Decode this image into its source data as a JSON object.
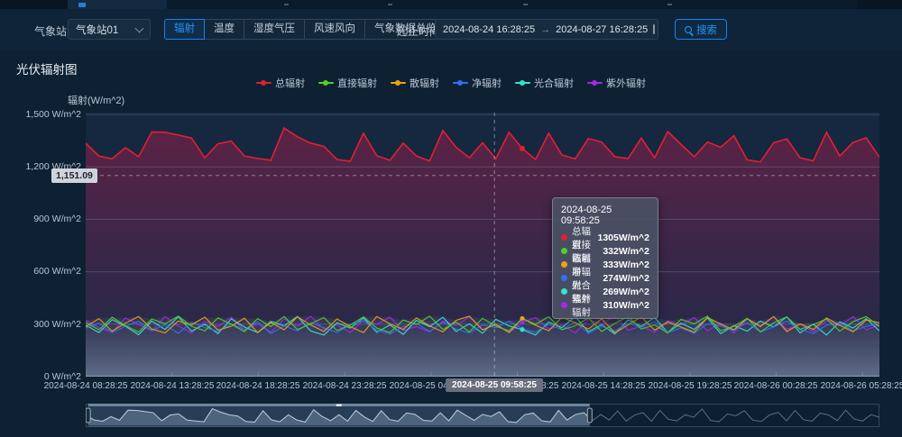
{
  "toolbar": {
    "station_label": "气象站",
    "station_value": "气象站01",
    "tabs": [
      {
        "label": "辐射"
      },
      {
        "label": "温度"
      },
      {
        "label": "湿度气压"
      },
      {
        "label": "风速风向"
      },
      {
        "label": "气象数据总览"
      }
    ],
    "time_label": "起止时间",
    "time_start": "2024-08-24 16:28:25",
    "time_end": "2024-08-27 16:28:25",
    "arrow": "→",
    "search_label": "搜索"
  },
  "page": {
    "title": "光伏辐射图"
  },
  "chart_data": {
    "type": "line",
    "title": "光伏辐射图",
    "ylabel": "辐射(W/m^2)",
    "ylim": [
      0,
      1500
    ],
    "grid": true,
    "legend_position": "top",
    "y_ticks": [
      "1,500 W/m^2",
      "1,200 W/m^2",
      "900 W/m^2",
      "600 W/m^2",
      "300 W/m^2",
      "0 W/m^2"
    ],
    "x_ticks": [
      "2024-08-24 08:28:25",
      "2024-08-24 13:28:25",
      "2024-08-24 18:28:25",
      "2024-08-24 23:28:25",
      "2024-08-25 04:28:25",
      "2024-08-25 09:28:25",
      "2024-08-25 14:28:25",
      "2024-08-25 19:28:25",
      "2024-08-26 00:28:25",
      "2024-08-26 05:28:25"
    ],
    "legend": [
      {
        "name": "总辐射",
        "color": "#e21f33"
      },
      {
        "name": "直接辐射",
        "color": "#4fd228"
      },
      {
        "name": "散辐射",
        "color": "#eaa410"
      },
      {
        "name": "净辐射",
        "color": "#2f72f5"
      },
      {
        "name": "光合辐射",
        "color": "#36e2cf"
      },
      {
        "name": "紫外辐射",
        "color": "#a428e6"
      }
    ],
    "hover_index": 33,
    "series": [
      {
        "name": "总辐射",
        "color": "#e21f33",
        "values": [
          1335,
          1262,
          1246,
          1310,
          1258,
          1400,
          1398,
          1382,
          1365,
          1252,
          1332,
          1348,
          1262,
          1248,
          1238,
          1422,
          1372,
          1336,
          1318,
          1242,
          1232,
          1392,
          1264,
          1238,
          1336,
          1262,
          1234,
          1408,
          1312,
          1252,
          1338,
          1246,
          1398,
          1305,
          1242,
          1392,
          1268,
          1246,
          1362,
          1342,
          1258,
          1248,
          1364,
          1252,
          1402,
          1328,
          1258,
          1342,
          1312,
          1378,
          1240,
          1228,
          1338,
          1360,
          1252,
          1235,
          1398,
          1262,
          1340,
          1366,
          1255
        ]
      },
      {
        "name": "直接辐射",
        "color": "#4fd228",
        "values": [
          310,
          268,
          340,
          292,
          255,
          330,
          302,
          346,
          288,
          262,
          336,
          300,
          258,
          332,
          286,
          344,
          270,
          302,
          338,
          264,
          296,
          342,
          278,
          252,
          324,
          298,
          346,
          270,
          312,
          256,
          334,
          288,
          262,
          332,
          300,
          342,
          268,
          290,
          336,
          258,
          304,
          344,
          272,
          296,
          250,
          328,
          302,
          346,
          262,
          288,
          334,
          256,
          308,
          342,
          270,
          298,
          330,
          260,
          314,
          344,
          286
        ]
      },
      {
        "name": "散辐射",
        "color": "#eaa410",
        "values": [
          285,
          332,
          260,
          306,
          344,
          272,
          250,
          318,
          296,
          340,
          266,
          288,
          334,
          252,
          310,
          268,
          342,
          296,
          258,
          330,
          286,
          252,
          344,
          302,
          270,
          336,
          290,
          256,
          322,
          346,
          268,
          300,
          252,
          333,
          294,
          262,
          340,
          308,
          272,
          330,
          250,
          296,
          342,
          266,
          312,
          284,
          254,
          338,
          300,
          268,
          332,
          288,
          344,
          258,
          302,
          270,
          336,
          294,
          256,
          324,
          308
        ]
      },
      {
        "name": "净辐射",
        "color": "#2f72f5",
        "values": [
          278,
          306,
          252,
          288,
          316,
          264,
          296,
          248,
          310,
          282,
          258,
          302,
          270,
          314,
          246,
          290,
          262,
          308,
          280,
          252,
          298,
          318,
          266,
          244,
          286,
          304,
          258,
          312,
          272,
          250,
          296,
          280,
          318,
          274,
          254,
          300,
          268,
          312,
          246,
          288,
          260,
          306,
          282,
          316,
          252,
          278,
          248,
          302,
          290,
          264,
          310,
          256,
          284,
          318,
          270,
          246,
          294,
          308,
          262,
          288,
          300
        ]
      },
      {
        "name": "光合辐射",
        "color": "#36e2cf",
        "values": [
          295,
          252,
          326,
          288,
          240,
          318,
          270,
          342,
          260,
          300,
          246,
          330,
          284,
          252,
          316,
          290,
          344,
          262,
          238,
          308,
          278,
          336,
          254,
          296,
          242,
          322,
          286,
          340,
          258,
          302,
          248,
          328,
          290,
          269,
          238,
          312,
          280,
          344,
          256,
          298,
          244,
          324,
          288,
          338,
          252,
          306,
          270,
          336,
          246,
          292,
          260,
          318,
          284,
          342,
          250,
          300,
          238,
          314,
          278,
          332,
          262
        ]
      },
      {
        "name": "紫外辐射",
        "color": "#a428e6",
        "values": [
          322,
          280,
          254,
          336,
          298,
          262,
          344,
          290,
          250,
          316,
          286,
          340,
          266,
          302,
          254,
          330,
          288,
          346,
          270,
          296,
          252,
          324,
          300,
          340,
          264,
          286,
          256,
          318,
          292,
          342,
          268,
          298,
          252,
          310,
          338,
          272,
          294,
          250,
          326,
          302,
          344,
          266,
          288,
          254,
          320,
          296,
          338,
          262,
          306,
          250,
          330,
          284,
          342,
          270,
          300,
          256,
          322,
          290,
          344,
          268,
          296
        ]
      }
    ]
  },
  "axis_pointer": {
    "x_label": "2024-08-25 09:58:25",
    "y_label": "1,151.09",
    "x_fraction": 0.515,
    "y_value": 1151.09
  },
  "tooltip": {
    "title": "2024-08-25 09:58:25",
    "rows": [
      {
        "name": "总辐射",
        "value": "1305W/m^2",
        "color": "#e21f33"
      },
      {
        "name": "直接辐射",
        "value": "332W/m^2",
        "color": "#4fd228"
      },
      {
        "name": "散辐射",
        "value": "333W/m^2",
        "color": "#eaa410"
      },
      {
        "name": "净辐射",
        "value": "274W/m^2",
        "color": "#2f72f5"
      },
      {
        "name": "光合辐射",
        "value": "269W/m^2",
        "color": "#36e2cf"
      },
      {
        "name": "紫外辐射",
        "value": "310W/m^2",
        "color": "#a428e6"
      }
    ]
  },
  "slider": {
    "selection_start": 0.003,
    "selection_end": 0.635,
    "values": [
      1335,
      1262,
      1246,
      1310,
      1258,
      1400,
      1398,
      1382,
      1365,
      1252,
      1332,
      1348,
      1262,
      1248,
      1238,
      1422,
      1372,
      1336,
      1318,
      1242,
      1232,
      1392,
      1264,
      1238,
      1336,
      1262,
      1234,
      1408,
      1312,
      1252,
      1338,
      1246,
      1398,
      1305,
      1242,
      1392,
      1268,
      1246,
      1362,
      1342,
      1258,
      1248,
      1364,
      1252,
      1402,
      1328,
      1258,
      1342,
      1312,
      1378,
      1240,
      1228,
      1338,
      1360,
      1252,
      1235,
      1398,
      1262,
      1340,
      1366,
      1255,
      1340,
      1262,
      1390,
      1248,
      1332,
      1366,
      1244,
      1398,
      1272,
      1250,
      1336,
      1302,
      1418,
      1256,
      1238,
      1348,
      1322,
      1394,
      1260,
      1242,
      1336,
      1370,
      1252,
      1398,
      1268,
      1246,
      1360,
      1332,
      1254,
      1402,
      1276,
      1248,
      1338,
      1300
    ]
  }
}
